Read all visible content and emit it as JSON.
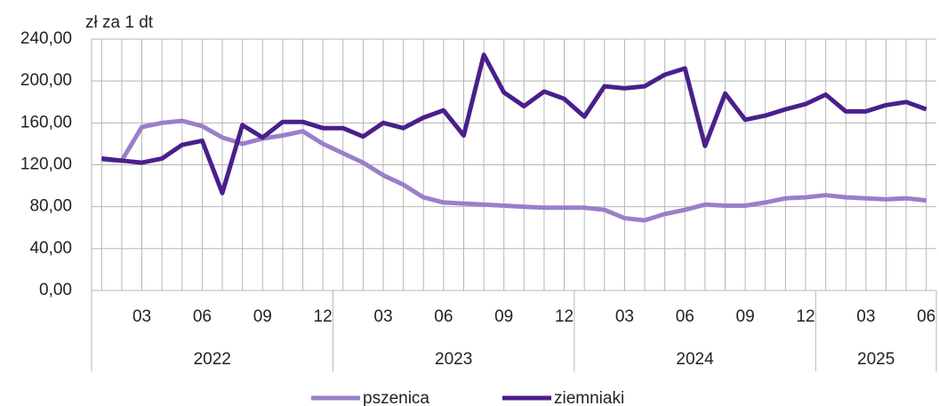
{
  "chart_data": {
    "type": "line",
    "y_axis_label": "zł za 1 dt",
    "categories": [
      null,
      null,
      "03",
      null,
      null,
      "06",
      null,
      null,
      "09",
      null,
      null,
      "12",
      null,
      null,
      "03",
      null,
      null,
      "06",
      null,
      null,
      "09",
      null,
      null,
      "12",
      null,
      null,
      "03",
      null,
      null,
      "06",
      null,
      null,
      "09",
      null,
      null,
      "12",
      null,
      null,
      "03",
      null,
      null,
      "06"
    ],
    "years": [
      "2022",
      "2023",
      "2024",
      "2025"
    ],
    "series": [
      {
        "name": "pszenica",
        "color": "#9a7fc8",
        "values": [
          125,
          124,
          156,
          160,
          162,
          157,
          146,
          140,
          145,
          148,
          152,
          140,
          131,
          122,
          110,
          101,
          89,
          84,
          83,
          82,
          81,
          80,
          79,
          79,
          79,
          77,
          69,
          67,
          73,
          77,
          82,
          81,
          81,
          84,
          88,
          89,
          91,
          89,
          88,
          87,
          88,
          86
        ]
      },
      {
        "name": "ziemniaki",
        "color": "#4a1f8c",
        "values": [
          126,
          124,
          122,
          126,
          139,
          143,
          93,
          158,
          146,
          161,
          161,
          155,
          155,
          147,
          160,
          155,
          165,
          172,
          148,
          225,
          189,
          176,
          190,
          183,
          166,
          195,
          193,
          195,
          206,
          212,
          138,
          188,
          163,
          167,
          173,
          178,
          187,
          171,
          171,
          177,
          180,
          173
        ]
      }
    ],
    "ylim": [
      0,
      240
    ],
    "yticks": [
      {
        "value": 0,
        "label": "0,00"
      },
      {
        "value": 40,
        "label": "40,00"
      },
      {
        "value": 80,
        "label": "80,00"
      },
      {
        "value": 120,
        "label": "120,00"
      },
      {
        "value": 160,
        "label": "160,00"
      },
      {
        "value": 200,
        "label": "200,00"
      },
      {
        "value": 240,
        "label": "240,00"
      }
    ],
    "grid": true
  }
}
